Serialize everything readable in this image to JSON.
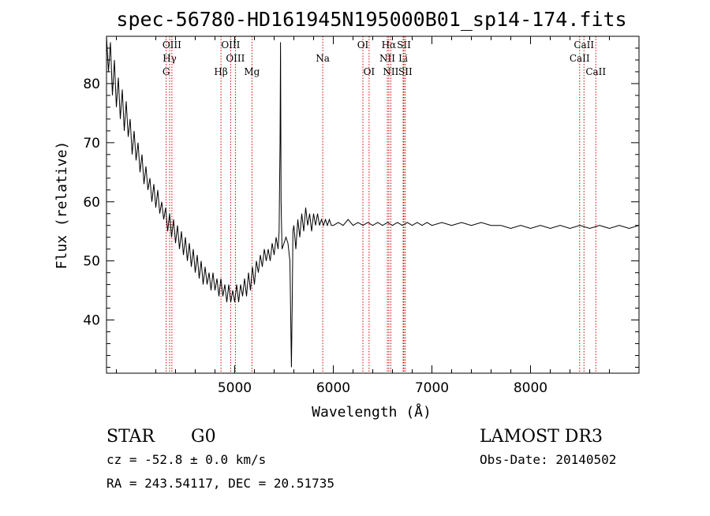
{
  "chart_data": {
    "type": "line",
    "title": "spec-56780-HD161945N195000B01_sp14-174.fits",
    "xlabel": "Wavelength (Å)",
    "ylabel": "Flux (relative)",
    "xlim": [
      3700,
      9100
    ],
    "ylim": [
      31,
      88
    ],
    "xticks": [
      5000,
      6000,
      7000,
      8000
    ],
    "yticks": [
      40,
      50,
      60,
      70,
      80
    ],
    "grid": false,
    "series": [
      {
        "points": [
          [
            3700,
            88
          ],
          [
            3720,
            82
          ],
          [
            3740,
            87
          ],
          [
            3760,
            78
          ],
          [
            3780,
            84
          ],
          [
            3800,
            76
          ],
          [
            3820,
            81
          ],
          [
            3840,
            74
          ],
          [
            3860,
            79
          ],
          [
            3880,
            72
          ],
          [
            3900,
            77
          ],
          [
            3920,
            71
          ],
          [
            3940,
            74
          ],
          [
            3960,
            68
          ],
          [
            3980,
            72
          ],
          [
            4000,
            67
          ],
          [
            4020,
            70
          ],
          [
            4040,
            65
          ],
          [
            4060,
            68
          ],
          [
            4080,
            63
          ],
          [
            4100,
            66
          ],
          [
            4120,
            62
          ],
          [
            4140,
            64
          ],
          [
            4160,
            60
          ],
          [
            4180,
            63
          ],
          [
            4200,
            59
          ],
          [
            4220,
            62
          ],
          [
            4240,
            58
          ],
          [
            4260,
            60
          ],
          [
            4280,
            57
          ],
          [
            4300,
            59
          ],
          [
            4320,
            55
          ],
          [
            4340,
            58
          ],
          [
            4360,
            54
          ],
          [
            4380,
            57
          ],
          [
            4400,
            53
          ],
          [
            4420,
            56
          ],
          [
            4440,
            52
          ],
          [
            4460,
            55
          ],
          [
            4480,
            51
          ],
          [
            4500,
            54
          ],
          [
            4520,
            50
          ],
          [
            4540,
            53
          ],
          [
            4560,
            49
          ],
          [
            4580,
            52
          ],
          [
            4600,
            48
          ],
          [
            4620,
            51
          ],
          [
            4640,
            47
          ],
          [
            4660,
            50
          ],
          [
            4680,
            46
          ],
          [
            4700,
            49
          ],
          [
            4720,
            46
          ],
          [
            4740,
            48
          ],
          [
            4760,
            45
          ],
          [
            4780,
            48
          ],
          [
            4800,
            45
          ],
          [
            4820,
            47
          ],
          [
            4840,
            44
          ],
          [
            4860,
            47
          ],
          [
            4880,
            44
          ],
          [
            4900,
            46
          ],
          [
            4920,
            43
          ],
          [
            4940,
            46
          ],
          [
            4960,
            43
          ],
          [
            4980,
            45
          ],
          [
            5000,
            43
          ],
          [
            5020,
            46
          ],
          [
            5040,
            43
          ],
          [
            5060,
            46
          ],
          [
            5080,
            44
          ],
          [
            5100,
            47
          ],
          [
            5120,
            44
          ],
          [
            5140,
            48
          ],
          [
            5160,
            45
          ],
          [
            5180,
            49
          ],
          [
            5200,
            46
          ],
          [
            5220,
            50
          ],
          [
            5240,
            48
          ],
          [
            5260,
            51
          ],
          [
            5280,
            49
          ],
          [
            5300,
            52
          ],
          [
            5320,
            50
          ],
          [
            5340,
            52
          ],
          [
            5360,
            50
          ],
          [
            5380,
            53
          ],
          [
            5400,
            51
          ],
          [
            5420,
            54
          ],
          [
            5440,
            52
          ],
          [
            5450,
            55
          ],
          [
            5460,
            70
          ],
          [
            5465,
            87
          ],
          [
            5470,
            60
          ],
          [
            5480,
            52
          ],
          [
            5500,
            53
          ],
          [
            5520,
            54
          ],
          [
            5540,
            53
          ],
          [
            5560,
            50
          ],
          [
            5575,
            32
          ],
          [
            5585,
            45
          ],
          [
            5590,
            55
          ],
          [
            5600,
            56
          ],
          [
            5620,
            52
          ],
          [
            5640,
            57
          ],
          [
            5660,
            54
          ],
          [
            5680,
            58
          ],
          [
            5700,
            55
          ],
          [
            5720,
            59
          ],
          [
            5740,
            56
          ],
          [
            5760,
            58
          ],
          [
            5780,
            55
          ],
          [
            5800,
            58
          ],
          [
            5820,
            56
          ],
          [
            5840,
            58
          ],
          [
            5860,
            56
          ],
          [
            5880,
            57
          ],
          [
            5900,
            56
          ],
          [
            5920,
            57
          ],
          [
            5940,
            56
          ],
          [
            5960,
            57
          ],
          [
            5980,
            56
          ],
          [
            6000,
            56
          ],
          [
            6050,
            56.5
          ],
          [
            6100,
            56
          ],
          [
            6150,
            57
          ],
          [
            6200,
            56
          ],
          [
            6250,
            56.5
          ],
          [
            6300,
            56
          ],
          [
            6350,
            56.5
          ],
          [
            6400,
            56
          ],
          [
            6450,
            56.5
          ],
          [
            6500,
            56
          ],
          [
            6550,
            56.5
          ],
          [
            6600,
            56
          ],
          [
            6650,
            56.5
          ],
          [
            6700,
            56
          ],
          [
            6750,
            56.5
          ],
          [
            6800,
            56
          ],
          [
            6850,
            56.5
          ],
          [
            6900,
            56
          ],
          [
            6950,
            56.5
          ],
          [
            7000,
            56
          ],
          [
            7100,
            56.5
          ],
          [
            7200,
            56
          ],
          [
            7300,
            56.5
          ],
          [
            7400,
            56
          ],
          [
            7500,
            56.5
          ],
          [
            7600,
            56
          ],
          [
            7700,
            56
          ],
          [
            7800,
            55.5
          ],
          [
            7900,
            56
          ],
          [
            8000,
            55.5
          ],
          [
            8100,
            56
          ],
          [
            8200,
            55.5
          ],
          [
            8300,
            56
          ],
          [
            8400,
            55.5
          ],
          [
            8500,
            56
          ],
          [
            8600,
            55.5
          ],
          [
            8700,
            56
          ],
          [
            8800,
            55.5
          ],
          [
            8900,
            56
          ],
          [
            9000,
            55.5
          ],
          [
            9100,
            56
          ]
        ]
      }
    ],
    "line_markers": [
      {
        "label": "OIII",
        "x": 4363,
        "row": 0
      },
      {
        "label": "Hγ",
        "x": 4340,
        "row": 1
      },
      {
        "label": "G",
        "x": 4305,
        "row": 2
      },
      {
        "label": "OIII",
        "x": 4959,
        "row": 0
      },
      {
        "label": "OIII",
        "x": 5007,
        "row": 1
      },
      {
        "label": "Hβ",
        "x": 4861,
        "row": 2
      },
      {
        "label": "Mg",
        "x": 5175,
        "row": 2
      },
      {
        "label": "Na",
        "x": 5893,
        "row": 1
      },
      {
        "label": "OI",
        "x": 6300,
        "row": 0
      },
      {
        "label": "OI",
        "x": 6363,
        "row": 2
      },
      {
        "label": "Hα",
        "x": 6563,
        "row": 0
      },
      {
        "label": "NII",
        "x": 6548,
        "row": 1
      },
      {
        "label": "NII",
        "x": 6583,
        "row": 2
      },
      {
        "label": "SII",
        "x": 6716,
        "row": 0
      },
      {
        "label": "Li",
        "x": 6708,
        "row": 1
      },
      {
        "label": "SII",
        "x": 6731,
        "row": 2
      },
      {
        "label": "CaII",
        "x": 8542,
        "row": 0
      },
      {
        "label": "CaII",
        "x": 8498,
        "row": 1
      },
      {
        "label": "CaII",
        "x": 8662,
        "row": 2
      }
    ]
  },
  "info": {
    "object_class": "STAR",
    "subclass": "G0",
    "survey": "LAMOST DR3",
    "cz": "cz = -52.8 ± 0.0 km/s",
    "obs_date": "Obs-Date: 20140502",
    "radec": "RA = 243.54117, DEC =  20.51735"
  }
}
